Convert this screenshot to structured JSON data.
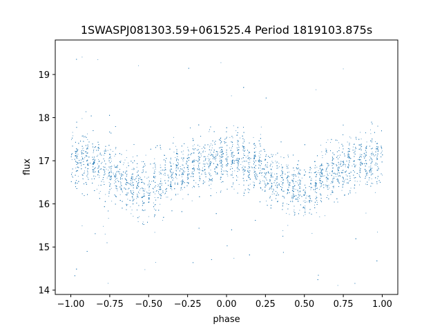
{
  "chart_data": {
    "type": "scatter",
    "title": "1SWASPJ081303.59+061525.4 Period 1819103.875s",
    "xlabel": "phase",
    "ylabel": "flux",
    "xlim": [
      -1.1,
      1.1
    ],
    "ylim": [
      13.9,
      19.8
    ],
    "xticks": [
      -1.0,
      -0.75,
      -0.5,
      -0.25,
      0.0,
      0.25,
      0.5,
      0.75,
      1.0
    ],
    "xtick_labels": [
      "−1.00",
      "−0.75",
      "−0.50",
      "−0.25",
      "0.00",
      "0.25",
      "0.50",
      "0.75",
      "1.00"
    ],
    "yticks": [
      14,
      15,
      16,
      17,
      18,
      19
    ],
    "ytick_labels": [
      "14",
      "15",
      "16",
      "17",
      "18",
      "19"
    ],
    "grid": false,
    "marker_color": "#1f77b4",
    "series": [
      {
        "phase_range": [
          -1.0,
          1.0
        ],
        "profile_phase": [
          0.0,
          0.1,
          0.2,
          0.3,
          0.4,
          0.5,
          0.6,
          0.7,
          0.8,
          0.9,
          1.0
        ],
        "profile_flux_mean": [
          17.1,
          17.0,
          16.85,
          16.65,
          16.4,
          16.35,
          16.6,
          16.8,
          16.95,
          17.05,
          17.1
        ],
        "flux_spread_typical": [
          15.8,
          17.9
        ],
        "flux_outlier_range": [
          14.1,
          19.5
        ]
      }
    ]
  }
}
